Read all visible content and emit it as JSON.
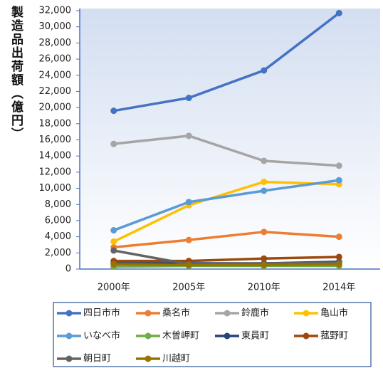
{
  "chart_data": {
    "type": "line",
    "y_label": "製造品出荷額（億円）",
    "categories": [
      "2000年",
      "2005年",
      "2010年",
      "2014年"
    ],
    "series": [
      {
        "name": "四日市市",
        "color": "#4472c4",
        "values": [
          19600,
          21200,
          24600,
          31700
        ]
      },
      {
        "name": "桑名市",
        "color": "#ed7d31",
        "values": [
          2700,
          3600,
          4600,
          4000
        ]
      },
      {
        "name": "鈴鹿市",
        "color": "#a5a5a5",
        "values": [
          15500,
          16500,
          13400,
          12800
        ]
      },
      {
        "name": "亀山市",
        "color": "#ffc000",
        "values": [
          3400,
          7900,
          10800,
          10500
        ]
      },
      {
        "name": "いなべ市",
        "color": "#5b9bd5",
        "values": [
          4800,
          8300,
          9700,
          11000
        ]
      },
      {
        "name": "木曽岬町",
        "color": "#70ad47",
        "values": [
          300,
          400,
          400,
          400
        ]
      },
      {
        "name": "東員町",
        "color": "#264478",
        "values": [
          700,
          700,
          700,
          900
        ]
      },
      {
        "name": "菰野町",
        "color": "#9e480e",
        "values": [
          1000,
          1000,
          1300,
          1500
        ]
      },
      {
        "name": "朝日町",
        "color": "#636363",
        "values": [
          2300,
          600,
          700,
          800
        ]
      },
      {
        "name": "川越町",
        "color": "#997300",
        "values": [
          600,
          500,
          500,
          600
        ]
      }
    ],
    "ylim": [
      0,
      32000
    ],
    "yticks": [
      0,
      {
        "value": 2000,
        "label": "2,000"
      },
      {
        "value": 4000,
        "label": "4,000"
      },
      {
        "value": 6000,
        "label": "6,000"
      },
      {
        "value": 8000,
        "label": "8,000"
      },
      {
        "value": 10000,
        "label": "10,000"
      },
      {
        "value": 12000,
        "label": "12,000"
      },
      {
        "value": 14000,
        "label": "14,000"
      },
      {
        "value": 16000,
        "label": "16,000"
      },
      {
        "value": 18000,
        "label": "18,000"
      },
      {
        "value": 20000,
        "label": "20,000"
      },
      {
        "value": 22000,
        "label": "22,000"
      },
      {
        "value": 24000,
        "label": "24,000"
      },
      {
        "value": 26000,
        "label": "26,000"
      },
      {
        "value": 28000,
        "label": "28,000"
      },
      {
        "value": 30000,
        "label": "30,000"
      },
      {
        "value": 32000,
        "label": "32,000"
      }
    ],
    "legend": "bottom"
  }
}
